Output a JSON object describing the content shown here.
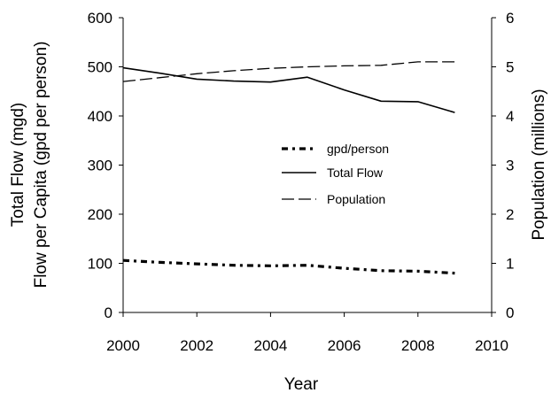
{
  "chart_data": {
    "type": "line",
    "title": "",
    "xlabel": "Year",
    "ylabel": [
      "Total Flow (mgd)",
      "Flow per Capita (gpd per person)"
    ],
    "y2label": "Population (millions)",
    "xlim": [
      2000,
      2010
    ],
    "ylim": [
      0,
      600
    ],
    "y2lim": [
      0,
      6
    ],
    "xticks": [
      "2000",
      "2002",
      "2004",
      "2006",
      "2008",
      "2010"
    ],
    "yticks": [
      "0",
      "100",
      "200",
      "300",
      "400",
      "500",
      "600"
    ],
    "y2ticks": [
      "0",
      "1",
      "2",
      "3",
      "4",
      "5",
      "6"
    ],
    "grid": false,
    "legend_position": "center",
    "series": [
      {
        "name": "gpd/person",
        "axis": "left",
        "style": "dash-dot",
        "x": [
          2000,
          2001,
          2002,
          2003,
          2004,
          2005,
          2006,
          2007,
          2008,
          2009
        ],
        "y": [
          106,
          102,
          99,
          96,
          95,
          96,
          90,
          85,
          84,
          80
        ]
      },
      {
        "name": "Total Flow",
        "axis": "left",
        "style": "solid",
        "x": [
          2000,
          2001,
          2002,
          2003,
          2004,
          2005,
          2006,
          2007,
          2008,
          2009
        ],
        "y": [
          498,
          487,
          475,
          471,
          469,
          479,
          453,
          430,
          429,
          407
        ]
      },
      {
        "name": "Population",
        "axis": "right",
        "style": "dashed",
        "x": [
          2000,
          2001,
          2002,
          2003,
          2004,
          2005,
          2006,
          2007,
          2008,
          2009
        ],
        "y": [
          4.7,
          4.78,
          4.86,
          4.92,
          4.97,
          5.0,
          5.02,
          5.03,
          5.1,
          5.1
        ]
      }
    ]
  }
}
